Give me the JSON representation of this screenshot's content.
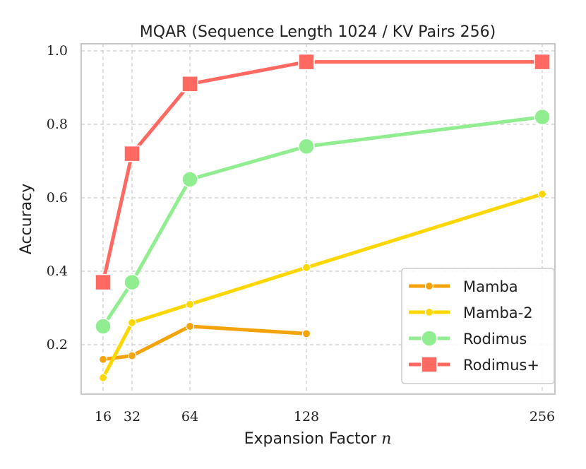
{
  "chart_data": {
    "type": "line",
    "title": "MQAR (Sequence Length 1024 / KV Pairs 256)",
    "xlabel": "Expansion Factor n",
    "ylabel": "Accuracy",
    "x_ticks": [
      16,
      32,
      64,
      128,
      256
    ],
    "x_tick_labels": [
      "16",
      "32",
      "64",
      "128",
      "256"
    ],
    "y_ticks": [
      0.2,
      0.4,
      0.6,
      0.8,
      1.0
    ],
    "y_tick_labels": [
      "0.2",
      "0.4",
      "0.6",
      "0.8",
      "1.0"
    ],
    "xlim": [
      16,
      256
    ],
    "ylim": [
      0.07,
      1.02
    ],
    "grid": true,
    "legend_position": "lower-right",
    "series": [
      {
        "name": "Mamba",
        "color": "#f5a30a",
        "marker": "small-circle",
        "x": [
          16,
          32,
          64,
          128
        ],
        "values": [
          0.16,
          0.17,
          0.25,
          0.23
        ]
      },
      {
        "name": "Mamba-2",
        "color": "#ffd700",
        "marker": "small-circle",
        "x": [
          16,
          32,
          64,
          128,
          256
        ],
        "values": [
          0.11,
          0.26,
          0.31,
          0.41,
          0.61
        ]
      },
      {
        "name": "Rodimus",
        "color": "#90ee90",
        "marker": "circle",
        "x": [
          16,
          32,
          64,
          128,
          256
        ],
        "values": [
          0.25,
          0.37,
          0.65,
          0.74,
          0.82
        ]
      },
      {
        "name": "Rodimus+",
        "color": "#ff6961",
        "marker": "square",
        "x": [
          16,
          32,
          64,
          128,
          256
        ],
        "values": [
          0.37,
          0.72,
          0.91,
          0.97,
          0.97
        ]
      }
    ]
  }
}
